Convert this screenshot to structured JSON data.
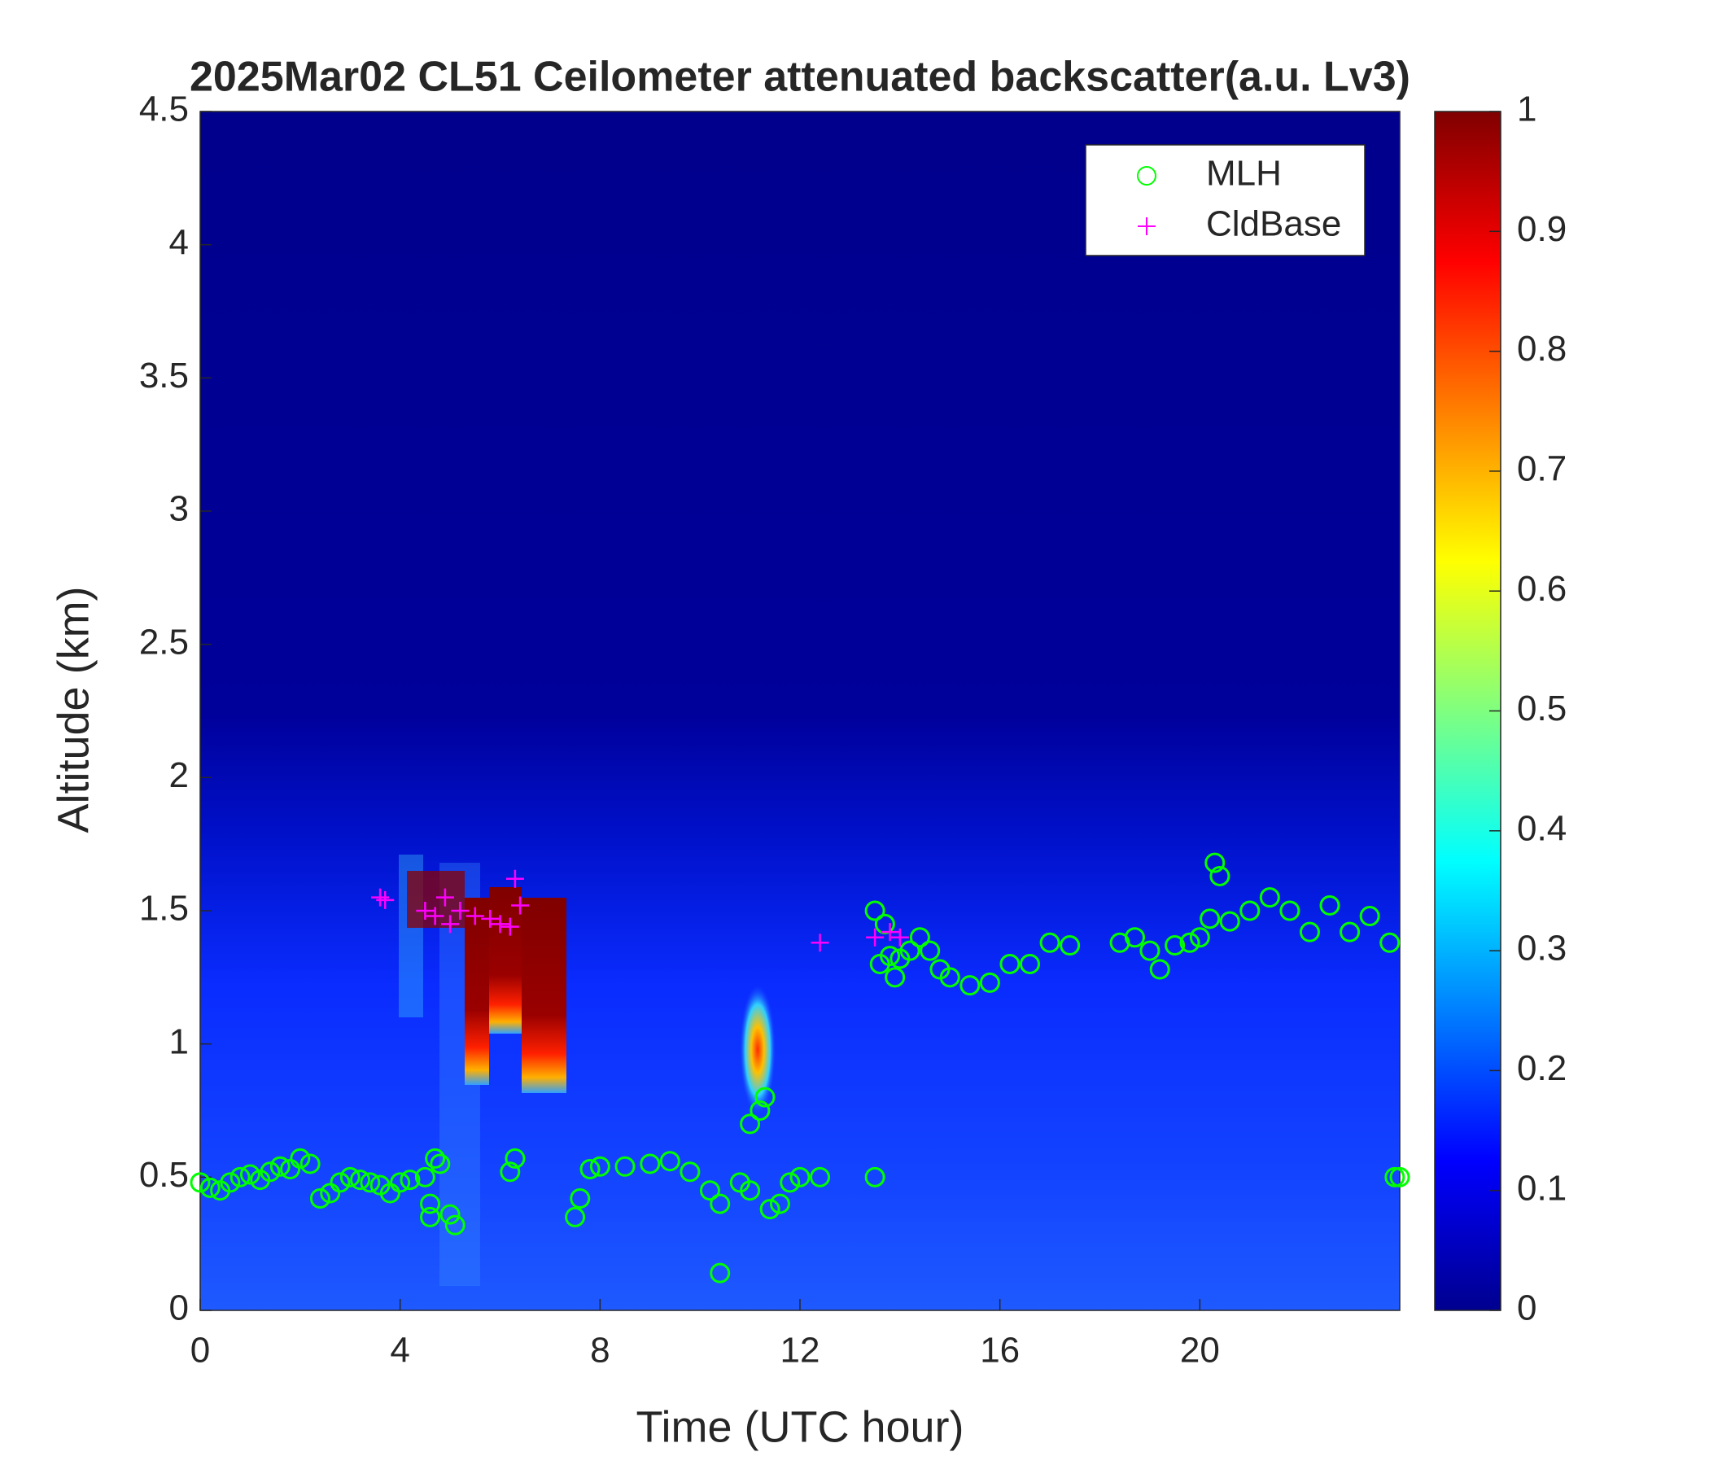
{
  "chart_data": {
    "type": "scatter",
    "title": "2025Mar02 CL51 Ceilometer attenuated backscatter(a.u. Lv3)",
    "x_label": "Time (UTC hour)",
    "y_label": "Altitude (km)",
    "xlim": [
      0,
      24
    ],
    "xticks": [
      0,
      4,
      8,
      12,
      16,
      20
    ],
    "ylim": [
      0,
      4.5
    ],
    "yticks": [
      0,
      0.5,
      1,
      1.5,
      2,
      2.5,
      3,
      3.5,
      4,
      4.5
    ],
    "legend": "upper right",
    "series": [
      {
        "name": "MLH",
        "color": "#00ff00",
        "marker": "circle",
        "x": [
          0,
          0.2,
          0.4,
          0.6,
          0.8,
          1,
          1.2,
          1.4,
          1.6,
          1.8,
          2,
          2.2,
          2.4,
          2.6,
          2.8,
          3,
          3.2,
          3.4,
          3.6,
          3.8,
          4,
          4.2,
          4.5,
          4.6,
          4.6,
          4.7,
          4.8,
          5,
          5.1,
          6.2,
          6.3,
          7.5,
          7.6,
          7.8,
          8,
          8.5,
          9,
          9.4,
          9.8,
          10.2,
          10.4,
          10.4,
          10.8,
          11,
          11,
          11.2,
          11.3,
          11.4,
          11.6,
          11.8,
          12,
          12.4,
          13.5,
          13.5,
          13.6,
          13.7,
          13.8,
          13.9,
          14,
          14.2,
          14.4,
          14.6,
          14.8,
          15,
          15.4,
          15.8,
          16.2,
          16.6,
          17,
          17.4,
          18.4,
          18.7,
          19,
          19.2,
          19.5,
          19.8,
          20,
          20.2,
          20.3,
          20.4,
          20.6,
          21,
          21.4,
          21.8,
          22.2,
          22.6,
          23,
          23.4,
          23.8,
          23.9,
          24
        ],
        "values": [
          0.48,
          0.46,
          0.45,
          0.48,
          0.5,
          0.51,
          0.49,
          0.52,
          0.54,
          0.53,
          0.57,
          0.55,
          0.42,
          0.44,
          0.48,
          0.5,
          0.49,
          0.48,
          0.47,
          0.44,
          0.48,
          0.49,
          0.5,
          0.4,
          0.35,
          0.57,
          0.55,
          0.36,
          0.32,
          0.52,
          0.57,
          0.35,
          0.42,
          0.53,
          0.54,
          0.54,
          0.55,
          0.56,
          0.52,
          0.45,
          0.4,
          0.14,
          0.48,
          0.45,
          0.7,
          0.75,
          0.8,
          0.38,
          0.4,
          0.48,
          0.5,
          0.5,
          0.5,
          1.5,
          1.3,
          1.45,
          1.33,
          1.25,
          1.32,
          1.35,
          1.4,
          1.35,
          1.28,
          1.25,
          1.22,
          1.23,
          1.3,
          1.3,
          1.38,
          1.37,
          1.38,
          1.4,
          1.35,
          1.28,
          1.37,
          1.38,
          1.4,
          1.47,
          1.68,
          1.63,
          1.46,
          1.5,
          1.55,
          1.5,
          1.42,
          1.52,
          1.42,
          1.48,
          1.38,
          0.5,
          0.5
        ]
      },
      {
        "name": "CldBase",
        "color": "#ff00ff",
        "marker": "plus",
        "x": [
          3.6,
          3.7,
          4.5,
          4.7,
          4.9,
          5,
          5.2,
          5.5,
          5.8,
          6,
          6.2,
          6.3,
          6.4,
          12.4,
          13.5,
          13.8,
          14
        ],
        "values": [
          1.55,
          1.54,
          1.5,
          1.48,
          1.55,
          1.45,
          1.5,
          1.48,
          1.47,
          1.45,
          1.44,
          1.62,
          1.52,
          1.38,
          1.4,
          1.42,
          1.4
        ]
      }
    ],
    "colorbar": {
      "colormap": "jet",
      "lim": [
        0,
        1
      ],
      "ticks": [
        0,
        0.1,
        0.2,
        0.3,
        0.4,
        0.5,
        0.6,
        0.7,
        0.8,
        0.9,
        1
      ]
    }
  }
}
